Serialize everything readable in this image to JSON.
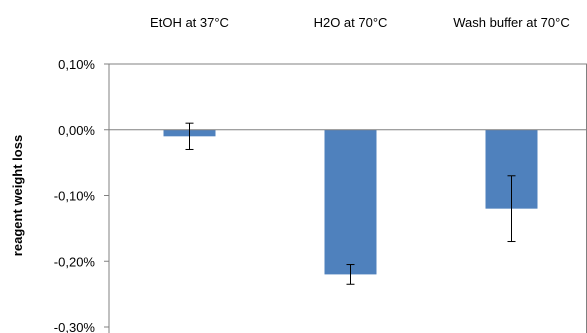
{
  "chart_data": {
    "type": "bar",
    "categories": [
      "EtOH at 37°C",
      "H2O at 70°C",
      "Wash buffer at 70°C"
    ],
    "values": [
      -0.0001,
      -0.0022,
      -0.0012
    ],
    "error": [
      0.0002,
      0.00015,
      0.0005
    ],
    "ylabel": "reagent weight loss",
    "ylim": [
      -0.003,
      0.001
    ],
    "yticks": [
      0.001,
      0.0,
      -0.001,
      -0.002,
      -0.003
    ],
    "ytick_labels": [
      "0,10%",
      "0,00%",
      "-0,10%",
      "-0,20%",
      "-0,30%"
    ],
    "grid": false,
    "category_labels_position": "top",
    "bar_color": "#4f81bd"
  }
}
